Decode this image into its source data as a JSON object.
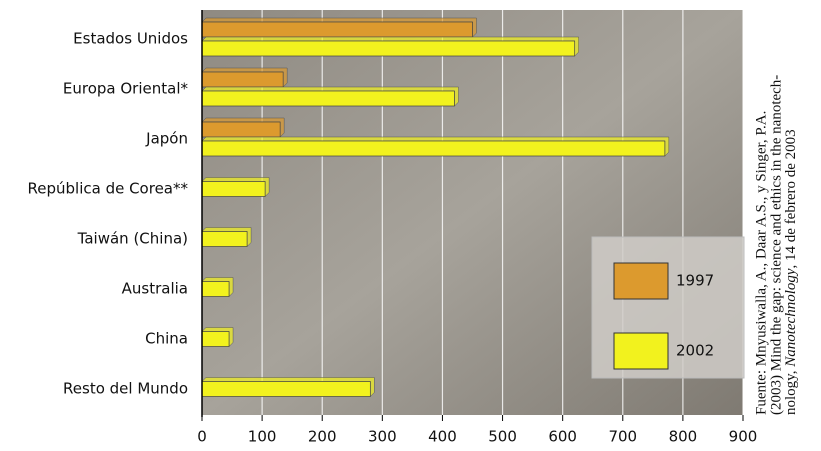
{
  "chart_data": {
    "type": "barh",
    "categories": [
      "Estados Unidos",
      "Europa Oriental*",
      "Japón",
      "República de Corea**",
      "Taiwán (China)",
      "Australia",
      "China",
      "Resto del Mundo"
    ],
    "series": [
      {
        "name": "1997",
        "color": "#dc9a2e",
        "values": [
          450,
          135,
          130,
          null,
          null,
          null,
          null,
          null
        ]
      },
      {
        "name": "2002",
        "color": "#f2f21e",
        "values": [
          620,
          420,
          770,
          105,
          75,
          45,
          45,
          280
        ]
      }
    ],
    "xlim": [
      0,
      900
    ],
    "xticks": [
      0,
      100,
      200,
      300,
      400,
      500,
      600,
      700,
      800,
      900
    ],
    "grid": true,
    "source": [
      "Fuente: Mnyusiwalla, A., Daar A.S., y Singer, P.A.",
      "(2003) Mind the gap: science and ethics in the nanotech-",
      [
        "nology, ",
        "Nanotechnology",
        ", 14 de febrero de 2003"
      ]
    ]
  }
}
